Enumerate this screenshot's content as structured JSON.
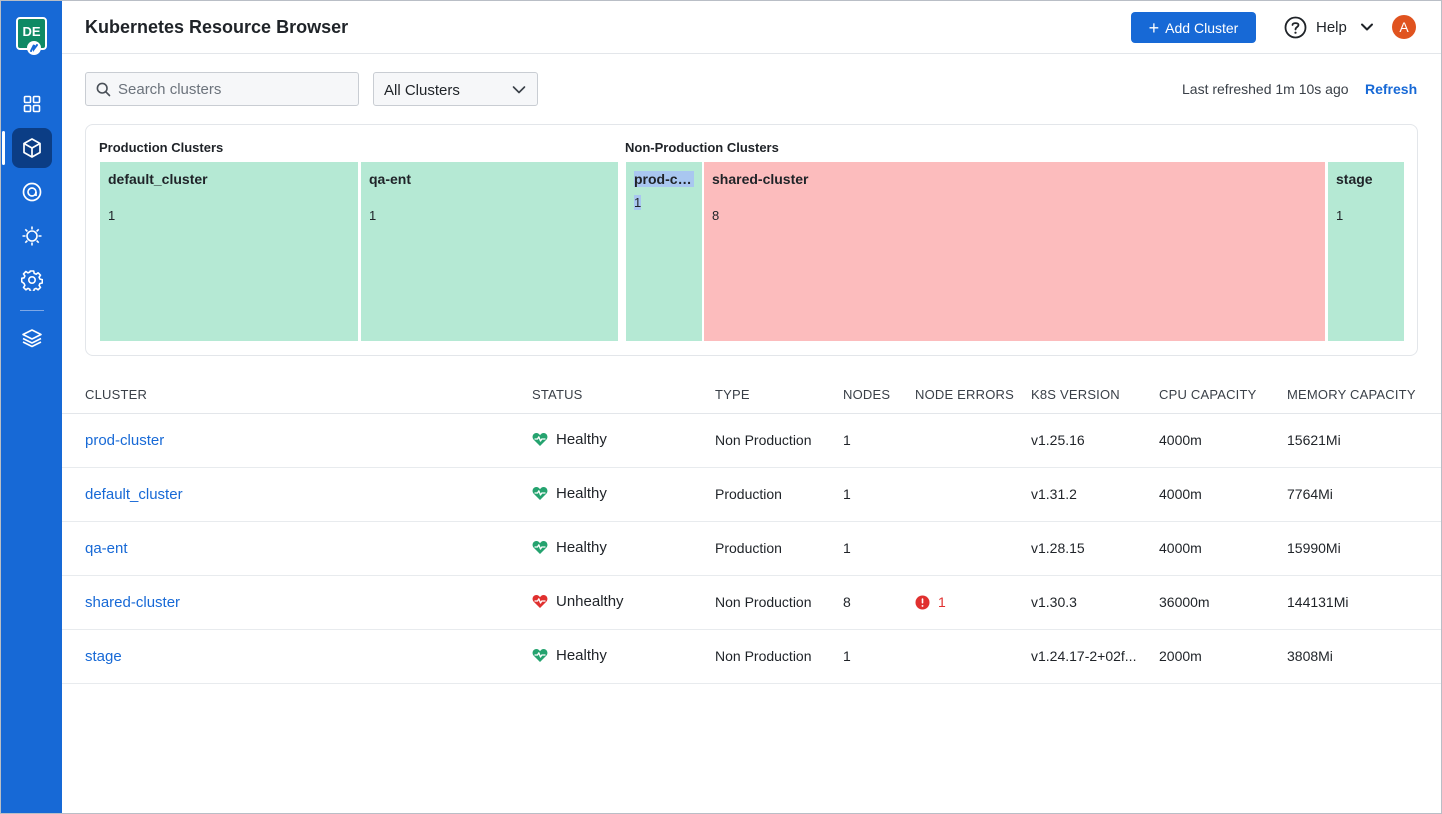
{
  "logo": {
    "text": "DE"
  },
  "sidebar": {
    "items": [
      {
        "name": "dashboard",
        "icon": "grid-icon"
      },
      {
        "name": "clusters",
        "icon": "cube-icon",
        "active": true
      },
      {
        "name": "targets",
        "icon": "target-icon"
      },
      {
        "name": "monitoring",
        "icon": "sun-icon"
      },
      {
        "name": "settings",
        "icon": "gear-icon"
      },
      {
        "name": "layers",
        "icon": "layers-icon"
      }
    ]
  },
  "header": {
    "title": "Kubernetes Resource Browser",
    "add_cluster_label": "Add Cluster",
    "help_label": "Help",
    "avatar_initial": "A"
  },
  "toolbar": {
    "search_placeholder": "Search clusters",
    "filter_value": "All Clusters",
    "last_refreshed": "Last refreshed 1m 10s ago",
    "refresh_label": "Refresh"
  },
  "treemap": {
    "production": {
      "label": "Production Clusters",
      "tiles": [
        {
          "name": "default_cluster",
          "count": "1",
          "status": "healthy"
        },
        {
          "name": "qa-ent",
          "count": "1",
          "status": "healthy"
        }
      ]
    },
    "non_production": {
      "label": "Non-Production Clusters",
      "tiles": [
        {
          "name": "prod-clu...",
          "count": "1",
          "status": "healthy"
        },
        {
          "name": "shared-cluster",
          "count": "8",
          "status": "unhealthy"
        },
        {
          "name": "stage",
          "count": "1",
          "status": "healthy"
        }
      ]
    }
  },
  "table": {
    "columns": [
      "CLUSTER",
      "STATUS",
      "TYPE",
      "NODES",
      "NODE ERRORS",
      "K8S VERSION",
      "CPU CAPACITY",
      "MEMORY CAPACITY"
    ],
    "rows": [
      {
        "cluster": "prod-cluster",
        "status": "Healthy",
        "type": "Non Production",
        "nodes": "1",
        "node_errors": "",
        "k8s_version": "v1.25.16",
        "cpu": "4000m",
        "memory": "15621Mi"
      },
      {
        "cluster": "default_cluster",
        "status": "Healthy",
        "type": "Production",
        "nodes": "1",
        "node_errors": "",
        "k8s_version": "v1.31.2",
        "cpu": "4000m",
        "memory": "7764Mi"
      },
      {
        "cluster": "qa-ent",
        "status": "Healthy",
        "type": "Production",
        "nodes": "1",
        "node_errors": "",
        "k8s_version": "v1.28.15",
        "cpu": "4000m",
        "memory": "15990Mi"
      },
      {
        "cluster": "shared-cluster",
        "status": "Unhealthy",
        "type": "Non Production",
        "nodes": "8",
        "node_errors": "1",
        "k8s_version": "v1.30.3",
        "cpu": "36000m",
        "memory": "144131Mi"
      },
      {
        "cluster": "stage",
        "status": "Healthy",
        "type": "Non Production",
        "nodes": "1",
        "node_errors": "",
        "k8s_version": "v1.24.17-2+02f...",
        "cpu": "2000m",
        "memory": "3808Mi"
      }
    ]
  },
  "colors": {
    "accent": "#1769d6",
    "sidebar": "#1769d6",
    "healthy": "#b5e9d4",
    "unhealthy": "#fcbcbd",
    "healthy_icon": "#25a36f",
    "unhealthy_icon": "#e0302f"
  }
}
